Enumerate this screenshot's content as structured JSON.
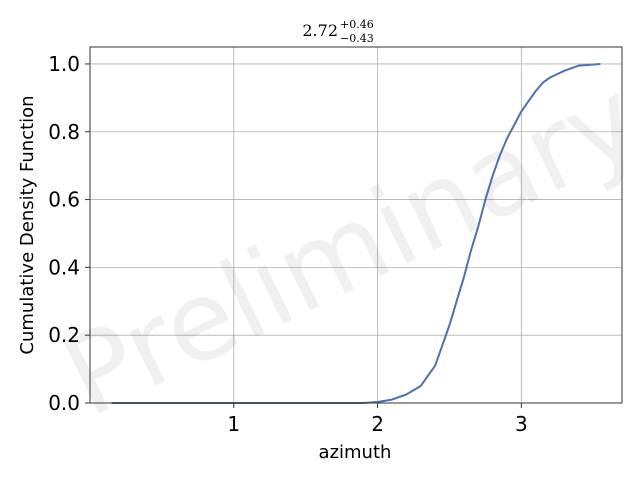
{
  "chart_data": {
    "type": "line",
    "title": {
      "value": "2.72",
      "upper": "+0.46",
      "lower": "−0.43"
    },
    "xlabel": "azimuth",
    "ylabel": "Cumulative Density Function",
    "watermark": "Preliminary",
    "xlim": [
      0.0,
      3.7
    ],
    "ylim": [
      0.0,
      1.05
    ],
    "xticks": [
      1,
      2,
      3
    ],
    "xtick_labels": [
      "1",
      "2",
      "3"
    ],
    "yticks": [
      0.0,
      0.2,
      0.4,
      0.6,
      0.8,
      1.0
    ],
    "ytick_labels": [
      "0.0",
      "0.2",
      "0.4",
      "0.6",
      "0.8",
      "1.0"
    ],
    "grid": true,
    "line_color": "#4c72b0",
    "series": [
      {
        "x": [
          0.15,
          0.5,
          1.0,
          1.5,
          1.9,
          2.0,
          2.1,
          2.2,
          2.3,
          2.4,
          2.45,
          2.5,
          2.55,
          2.6,
          2.65,
          2.7,
          2.75,
          2.8,
          2.85,
          2.9,
          2.95,
          3.0,
          3.05,
          3.1,
          3.15,
          3.2,
          3.3,
          3.4,
          3.55
        ],
        "y": [
          0.0,
          0.0,
          0.0,
          0.0,
          0.0,
          0.003,
          0.01,
          0.025,
          0.05,
          0.11,
          0.17,
          0.23,
          0.3,
          0.37,
          0.45,
          0.52,
          0.6,
          0.67,
          0.73,
          0.78,
          0.82,
          0.86,
          0.89,
          0.92,
          0.945,
          0.96,
          0.98,
          0.995,
          1.0
        ]
      }
    ]
  }
}
